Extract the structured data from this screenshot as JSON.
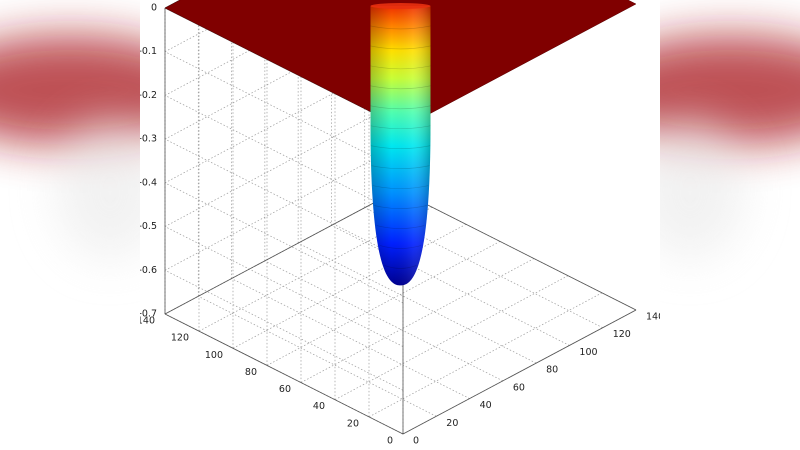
{
  "colors": {
    "surface_flat": "#800000",
    "background": "#ffffff",
    "pillar_red": "#c0262c",
    "grid": "#9a9a9a"
  },
  "chart_data": {
    "type": "surface",
    "title": "",
    "xlabel": "",
    "ylabel": "",
    "zlabel": "",
    "xlim": [
      0,
      140
    ],
    "ylim": [
      0,
      140
    ],
    "zlim": [
      -0.7,
      0
    ],
    "x_ticks": [
      "0",
      "20",
      "40",
      "60",
      "80",
      "100",
      "120",
      "140"
    ],
    "y_ticks": [
      "0",
      "20",
      "40",
      "60",
      "80",
      "100",
      "120",
      "140"
    ],
    "z_ticks": [
      "0",
      "-0.1",
      "-0.2",
      "-0.3",
      "-0.4",
      "-0.5",
      "-0.6",
      "-0.7"
    ],
    "grid": true,
    "colormap": "jet",
    "well": {
      "center": [
        70,
        70
      ],
      "min_z": -0.63,
      "surface_z": 0
    }
  }
}
